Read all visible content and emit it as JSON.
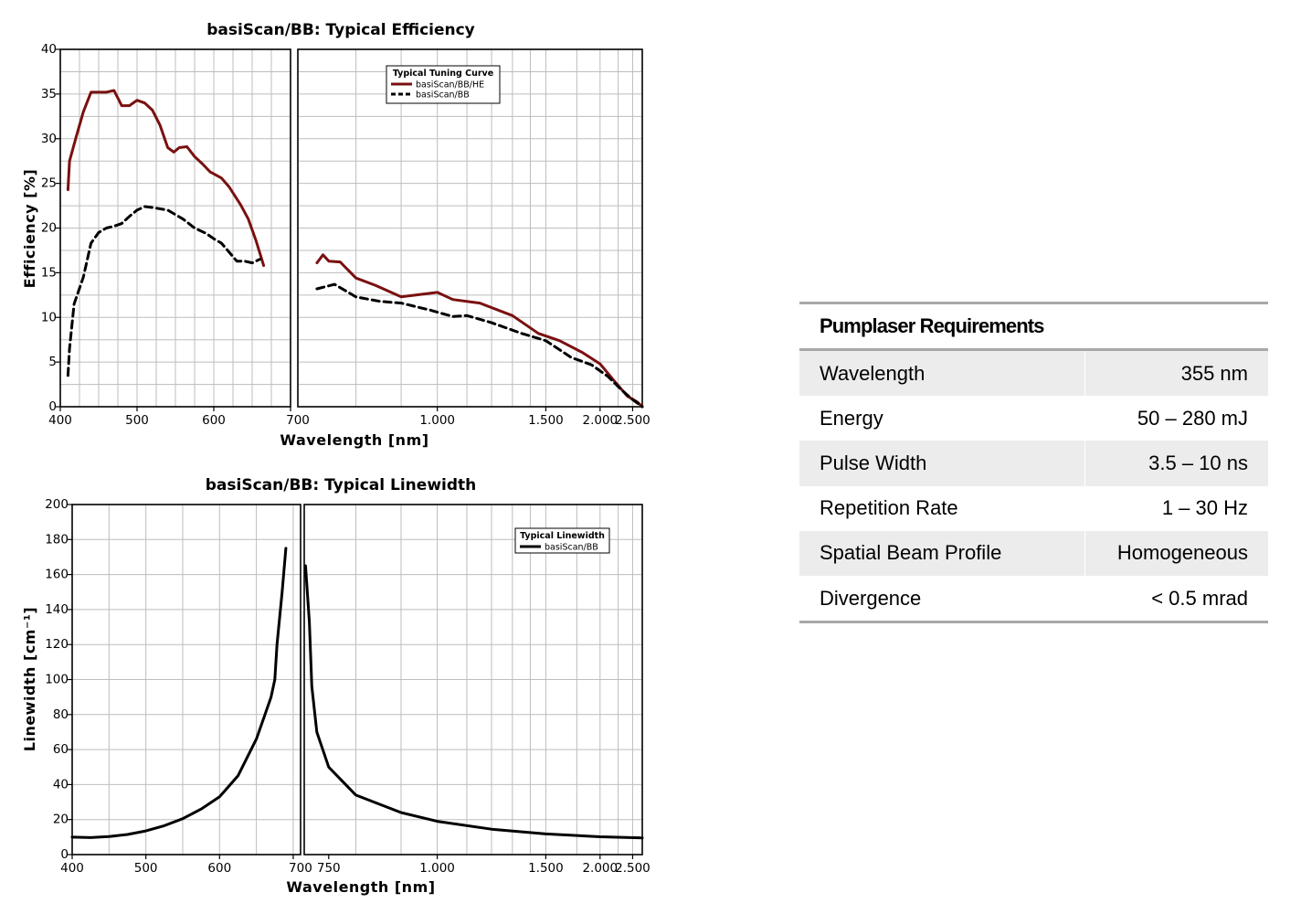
{
  "chart_data": [
    {
      "type": "line",
      "title": "basiScan/BB: Typical Efficiency",
      "xlabel": "Wavelength [nm]",
      "ylabel": "Efficiency [%]",
      "ylim": [
        0,
        40
      ],
      "yticks": [
        "0",
        "5",
        "10",
        "15",
        "20",
        "25",
        "30",
        "35",
        "40"
      ],
      "x_scale": "broken axis: linear 400–700 nm (left panel), reciprocal 700–2700 nm (right panel)",
      "xticks_left": [
        "400",
        "500",
        "600",
        "700"
      ],
      "xticks_right": [
        "1.000",
        "1.500",
        "2.000",
        "2.500"
      ],
      "grid": true,
      "legend": {
        "title": "Typical Tuning Curve",
        "position": "top-right"
      },
      "series": [
        {
          "name": "basiScan/BB/HE",
          "color": "#7a1010",
          "style": "solid",
          "segments": [
            [
              [
                410,
                24.3
              ],
              [
                412,
                27.5
              ],
              [
                420,
                30
              ],
              [
                430,
                33
              ],
              [
                440,
                35.2
              ],
              [
                450,
                35.2
              ],
              [
                460,
                35.2
              ],
              [
                470,
                35.4
              ],
              [
                480,
                33.7
              ],
              [
                490,
                33.7
              ],
              [
                500,
                34.3
              ],
              [
                510,
                34
              ],
              [
                520,
                33.2
              ],
              [
                530,
                31.5
              ],
              [
                540,
                29
              ],
              [
                548,
                28.5
              ],
              [
                555,
                29
              ],
              [
                565,
                29.1
              ],
              [
                575,
                28
              ],
              [
                585,
                27.2
              ],
              [
                595,
                26.3
              ],
              [
                610,
                25.6
              ],
              [
                620,
                24.6
              ],
              [
                635,
                22.6
              ],
              [
                645,
                21
              ],
              [
                655,
                18.6
              ],
              [
                665,
                15.8
              ]
            ],
            [
              [
                730,
                16.1
              ],
              [
                740,
                17
              ],
              [
                750,
                16.3
              ],
              [
                770,
                16.2
              ],
              [
                800,
                14.4
              ],
              [
                840,
                13.6
              ],
              [
                900,
                12.3
              ],
              [
                1000,
                12.8
              ],
              [
                1050,
                12
              ],
              [
                1150,
                11.6
              ],
              [
                1300,
                10.2
              ],
              [
                1450,
                8.2
              ],
              [
                1600,
                7.4
              ],
              [
                1800,
                6.1
              ],
              [
                2000,
                4.8
              ],
              [
                2200,
                2.8
              ],
              [
                2400,
                1.2
              ],
              [
                2600,
                0.5
              ],
              [
                2700,
                0
              ]
            ]
          ]
        },
        {
          "name": "basiScan/BB",
          "color": "#000000",
          "style": "dashed",
          "segments": [
            [
              [
                410,
                3.5
              ],
              [
                412,
                6.5
              ],
              [
                418,
                11.5
              ],
              [
                430,
                14.5
              ],
              [
                440,
                18.3
              ],
              [
                450,
                19.5
              ],
              [
                460,
                20
              ],
              [
                470,
                20.2
              ],
              [
                480,
                20.5
              ],
              [
                490,
                21.3
              ],
              [
                500,
                22
              ],
              [
                510,
                22.4
              ],
              [
                520,
                22.3
              ],
              [
                540,
                22
              ],
              [
                560,
                21
              ],
              [
                575,
                20
              ],
              [
                590,
                19.4
              ],
              [
                600,
                18.8
              ],
              [
                610,
                18.3
              ],
              [
                620,
                17.3
              ],
              [
                630,
                16.3
              ],
              [
                640,
                16.3
              ],
              [
                650,
                16.1
              ],
              [
                660,
                16.5
              ]
            ],
            [
              [
                730,
                13.2
              ],
              [
                760,
                13.7
              ],
              [
                800,
                12.3
              ],
              [
                850,
                11.8
              ],
              [
                900,
                11.6
              ],
              [
                980,
                10.8
              ],
              [
                1050,
                10.1
              ],
              [
                1100,
                10.2
              ],
              [
                1200,
                9.4
              ],
              [
                1350,
                8.2
              ],
              [
                1500,
                7.4
              ],
              [
                1700,
                5.5
              ],
              [
                1900,
                4.7
              ],
              [
                2100,
                3.4
              ],
              [
                2300,
                1.9
              ],
              [
                2500,
                0.8
              ],
              [
                2700,
                0
              ]
            ]
          ]
        }
      ]
    },
    {
      "type": "line",
      "title": "basiScan/BB: Typical Linewidth",
      "xlabel": "Wavelength [nm]",
      "ylabel": "Linewidth [cm⁻¹]",
      "ylim": [
        0,
        200
      ],
      "yticks": [
        "0",
        "20",
        "40",
        "60",
        "80",
        "100",
        "120",
        "140",
        "160",
        "180",
        "200"
      ],
      "x_scale": "broken axis: linear 400–710 nm (left panel), reciprocal 710–2700 nm (right panel)",
      "xticks_left": [
        "400",
        "500",
        "600",
        "700"
      ],
      "xticks_right": [
        "750",
        "1.000",
        "1.500",
        "2.000",
        "2.500"
      ],
      "grid": true,
      "legend": {
        "title": "Typical Linewidth",
        "position": "top-right"
      },
      "series": [
        {
          "name": "basiScan/BB",
          "color": "#000000",
          "style": "solid",
          "segments": [
            [
              [
                400,
                10
              ],
              [
                425,
                9.7
              ],
              [
                450,
                10.3
              ],
              [
                475,
                11.5
              ],
              [
                500,
                13.5
              ],
              [
                525,
                16.5
              ],
              [
                550,
                20.5
              ],
              [
                575,
                26
              ],
              [
                600,
                33
              ],
              [
                625,
                45
              ],
              [
                650,
                66
              ],
              [
                660,
                78
              ],
              [
                670,
                90
              ],
              [
                675,
                100
              ],
              [
                678,
                120
              ],
              [
                685,
                150
              ],
              [
                690,
                175
              ]
            ],
            [
              [
                712,
                165
              ],
              [
                718,
                133
              ],
              [
                722,
                96
              ],
              [
                730,
                70
              ],
              [
                750,
                50
              ],
              [
                800,
                34
              ],
              [
                900,
                24
              ],
              [
                1000,
                19
              ],
              [
                1200,
                14.5
              ],
              [
                1500,
                11.8
              ],
              [
                2000,
                10.2
              ],
              [
                2700,
                9.5
              ]
            ]
          ]
        }
      ]
    }
  ],
  "requirements_table": {
    "title": "Pumplaser Requirements",
    "rows": [
      {
        "label": "Wavelength",
        "value": "355 nm"
      },
      {
        "label": "Energy",
        "value": "50 – 280 mJ"
      },
      {
        "label": "Pulse Width",
        "value": "3.5 – 10 ns"
      },
      {
        "label": "Repetition Rate",
        "value": "1 – 30 Hz"
      },
      {
        "label": "Spatial Beam Profile",
        "value": "Homogeneous"
      },
      {
        "label": "Divergence",
        "value": "< 0.5 mrad"
      }
    ]
  }
}
